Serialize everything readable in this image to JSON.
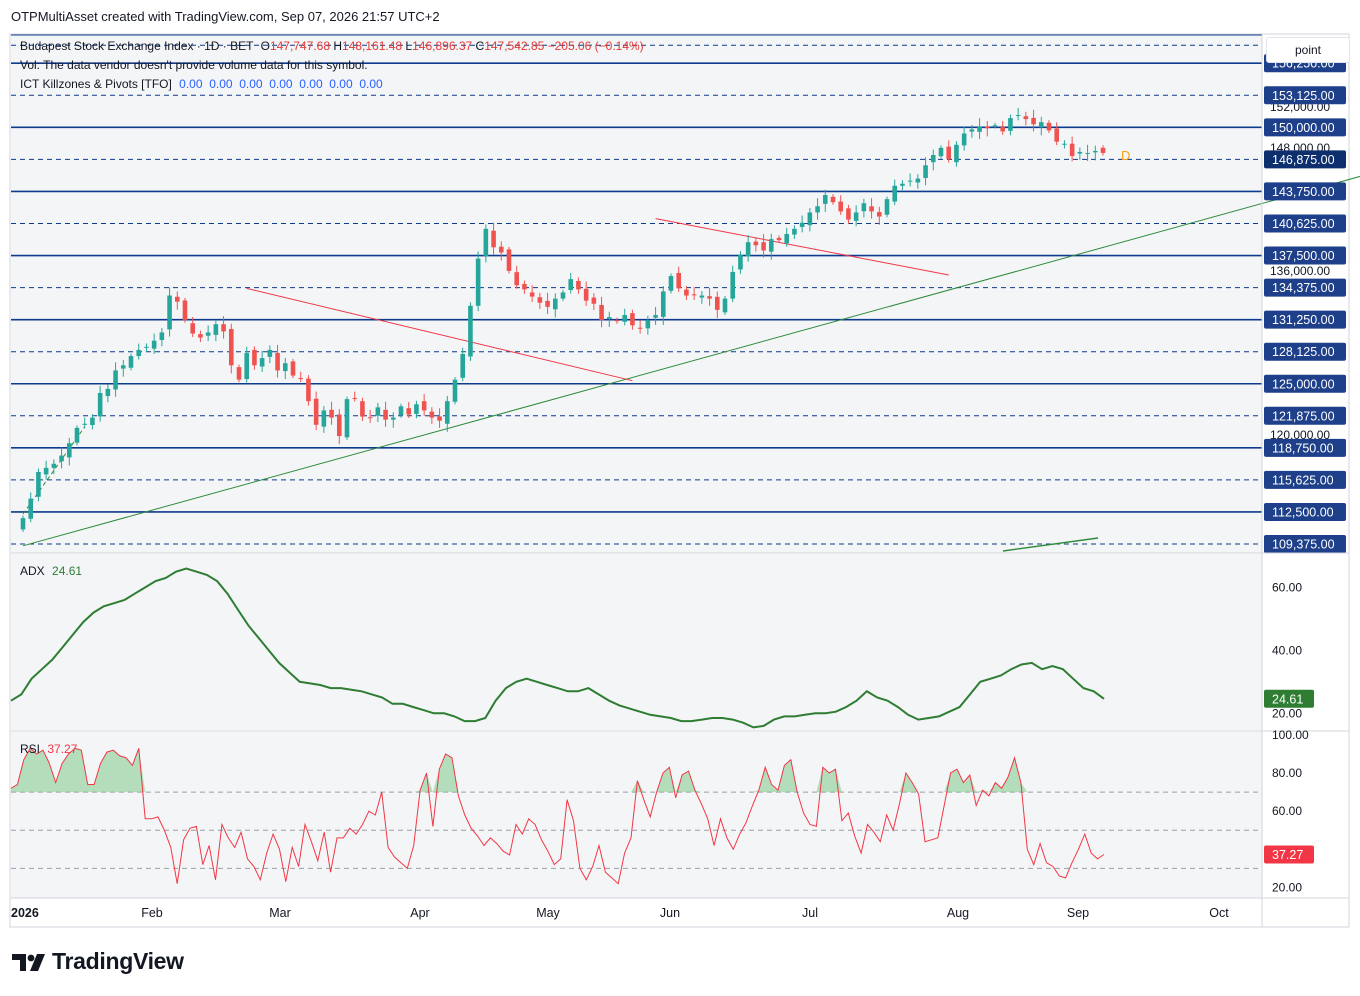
{
  "header": {
    "publisher": "OTPMultiAsset created with TradingView.com, Sep 07, 2026 21:57 UTC+2"
  },
  "legend": {
    "symbol": "Budapest Stock Exchange Index · 1D · BET",
    "open_label": "O",
    "open": "147,747.68",
    "high_label": "H",
    "high": "148,161.48",
    "low_label": "L",
    "low": "146,896.37",
    "close_label": "C",
    "close": "147,542.85",
    "change": "−205.06 (−0.14%)",
    "vol_line": "Vol: The data vendor doesn't provide volume data for this symbol.",
    "indicator_name": "ICT Killzones & Pivots [TFO]",
    "indicator_values": "0.00  0.00  0.00  0.00  0.00  0.00  0.00"
  },
  "unit_button": "point",
  "pivot_marker": "D",
  "brand": "TradingView",
  "colors": {
    "up": "#26a69a",
    "down": "#ef5350",
    "level_line": "#0d3b8e",
    "trend_green": "#2e8b3a",
    "trend_red": "#f23645",
    "adx": "#2e7d32",
    "rsi": "#f23645"
  },
  "chart_data": [
    {
      "type": "candlestick",
      "name": "price",
      "x_axis": {
        "labels": [
          "2026",
          "Feb",
          "Mar",
          "Apr",
          "May",
          "Jun",
          "Jul",
          "Aug",
          "Sep",
          "Oct"
        ]
      },
      "ylim": [
        108500,
        159000
      ],
      "y_tick_labels": [
        "156,250.00",
        "153,125.00",
        "150,000.00",
        "146,875.00",
        "143,750.00",
        "140,625.00",
        "137,500.00",
        "134,375.00",
        "131,250.00",
        "128,125.00",
        "125,000.00",
        "121,875.00",
        "118,750.00",
        "115,625.00",
        "112,500.00",
        "109,375.00"
      ],
      "y_tick_values": [
        156250,
        153125,
        150000,
        146875,
        143750,
        140625,
        137500,
        134375,
        131250,
        128125,
        125000,
        121875,
        118750,
        115625,
        112500,
        109375
      ],
      "minor_tick_labels": [
        {
          "value": 152000,
          "text": "152,000.00"
        },
        {
          "value": 148000,
          "text": "148,000.00"
        },
        {
          "value": 136000,
          "text": "136,000.00"
        },
        {
          "value": 120000,
          "text": "120,000.00"
        }
      ],
      "solid_levels": [
        159000,
        156250,
        150000,
        143750,
        137500,
        131250,
        125000,
        118750,
        112500
      ],
      "dashed_levels": [
        158000,
        153125,
        146875,
        140625,
        134375,
        128125,
        121875,
        115625,
        109375
      ],
      "last_price_label": "146,875.00",
      "trendlines": [
        {
          "color": "green",
          "from": [
            0,
            109200
          ],
          "to": [
            180,
            146600
          ]
        },
        {
          "color": "green",
          "from": [
            0,
            112300
          ],
          "to": [
            8,
            120800
          ],
          "dashed": true
        },
        {
          "color": "red",
          "from": [
            29,
            134300
          ],
          "to": [
            79,
            125300
          ]
        },
        {
          "color": "red",
          "from": [
            82,
            141100
          ],
          "to": [
            120,
            135600
          ]
        }
      ],
      "closes": [
        111900,
        113800,
        116400,
        116800,
        117200,
        118000,
        119200,
        120700,
        121100,
        121700,
        124100,
        124500,
        126300,
        126800,
        127700,
        128300,
        128600,
        129200,
        130000,
        133600,
        133000,
        131200,
        129900,
        129500,
        130000,
        130800,
        130100,
        126800,
        125400,
        128000,
        126800,
        127500,
        128300,
        126300,
        127000,
        125800,
        125500,
        123300,
        121000,
        122400,
        121700,
        119900,
        123500,
        123600,
        121800,
        121700,
        122700,
        121500,
        121700,
        122800,
        122000,
        123000,
        122400,
        121700,
        121400,
        123300,
        125400,
        127900,
        132600,
        137200,
        140100,
        138300,
        137800,
        136000,
        134600,
        134200,
        133500,
        132900,
        132500,
        133300,
        133900,
        135200,
        134200,
        133100,
        132800,
        131200,
        131500,
        131100,
        131700,
        130700,
        130400,
        131200,
        131700,
        134000,
        135500,
        134300,
        133600,
        133700,
        133600,
        133300,
        132200,
        133300,
        135900,
        137600,
        138800,
        138500,
        138000,
        139100,
        139000,
        139600,
        140100,
        140700,
        141700,
        142300,
        143400,
        142700,
        141800,
        141000,
        141700,
        142600,
        141800,
        141300,
        143000,
        144300,
        144500,
        144800,
        145000,
        146300,
        147300,
        148000,
        146900,
        148300,
        149400,
        149800,
        150100,
        149900,
        150200,
        149600,
        150900,
        151200,
        150800,
        150300,
        150500,
        149700,
        148600,
        148400,
        147200,
        147600,
        147500,
        147700,
        147500
      ]
    },
    {
      "type": "line",
      "name": "ADX",
      "label": "ADX",
      "last_value": "24.61",
      "ylim": [
        15,
        70
      ],
      "y_tick_labels": [
        "60.00",
        "40.00",
        "20.00"
      ],
      "y_tick_values": [
        60,
        40,
        20
      ],
      "values": [
        24,
        26,
        31,
        34,
        37,
        41,
        45,
        49,
        52,
        54,
        55,
        56,
        58,
        60,
        62,
        63,
        65,
        66,
        65,
        64,
        62,
        58,
        53,
        48,
        44,
        40,
        36,
        33,
        30,
        29.5,
        29,
        28,
        28,
        27.5,
        27,
        26,
        25,
        23,
        23,
        22,
        21,
        20,
        20,
        19,
        17.5,
        17.5,
        18.5,
        24,
        28,
        30,
        31,
        30,
        29,
        28,
        27,
        27,
        28,
        26,
        24,
        22.5,
        21.5,
        20.5,
        19.5,
        19,
        18.5,
        17.5,
        17.5,
        18,
        18.5,
        18.5,
        18,
        17,
        15.5,
        16,
        18,
        19,
        19,
        19.5,
        20,
        20,
        20.5,
        22,
        24,
        27,
        25,
        24,
        22,
        19.5,
        18,
        18.5,
        19,
        20.5,
        22,
        26,
        30,
        31,
        32,
        34,
        35.5,
        36,
        34,
        35,
        34,
        31,
        28,
        27,
        24.6
      ]
    },
    {
      "type": "line",
      "name": "RSI",
      "label": "RSI",
      "last_value": "37.27",
      "ylim": [
        15,
        101
      ],
      "y_tick_labels": [
        "100.00",
        "80.00",
        "60.00",
        "20.00"
      ],
      "y_tick_values": [
        100,
        80,
        60,
        20
      ],
      "bands": [
        70,
        50,
        30
      ],
      "values": [
        72,
        74,
        87,
        93,
        90,
        92,
        85,
        75,
        85,
        90,
        93,
        92,
        74,
        74,
        85,
        91,
        92,
        89,
        88,
        84,
        93,
        56,
        56,
        57,
        50,
        41,
        22,
        45,
        51,
        52,
        32,
        42,
        24,
        53,
        46,
        41,
        49,
        35,
        31,
        24,
        38,
        48,
        40,
        23,
        41,
        31,
        53,
        44,
        34,
        49,
        28,
        46,
        46,
        51,
        48,
        53,
        60,
        58,
        70,
        41,
        36,
        33,
        30,
        42,
        71,
        80,
        52,
        82,
        90,
        88,
        68,
        58,
        51,
        47,
        42,
        46,
        43,
        39,
        37,
        53,
        48,
        56,
        53,
        45,
        39,
        32,
        35,
        66,
        55,
        30,
        24,
        31,
        42,
        28,
        25,
        22,
        38,
        46,
        76,
        66,
        57,
        70,
        80,
        83,
        67,
        79,
        81,
        71,
        64,
        56,
        42,
        56,
        46,
        40,
        48,
        54,
        63,
        71,
        83,
        74,
        71,
        84,
        87,
        70,
        59,
        53,
        52,
        83,
        80,
        82,
        55,
        59,
        47,
        38,
        53,
        49,
        44,
        58,
        50,
        64,
        80,
        75,
        69,
        44,
        45,
        46,
        63,
        80,
        82,
        75,
        79,
        63,
        71,
        68,
        75,
        72,
        78,
        88,
        75,
        40,
        32,
        43,
        33,
        31,
        26,
        25,
        33,
        40,
        48,
        38,
        35,
        37.27
      ]
    }
  ]
}
